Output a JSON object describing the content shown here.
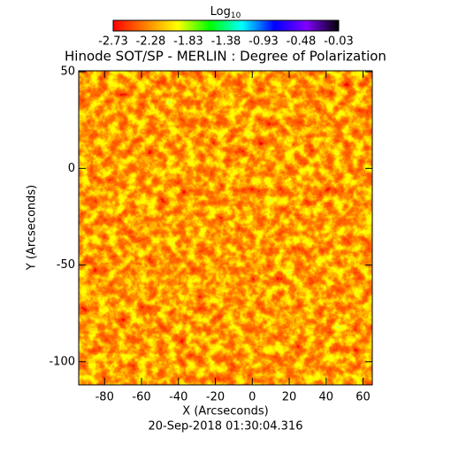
{
  "chart_data": {
    "type": "image",
    "title": "Hinode SOT/SP - MERLIN : Degree of Polarization",
    "xlabel": "X (Arcseconds)",
    "ylabel": "Y (Arcseconds)",
    "footer": "20-Sep-2018 01:30:04.316",
    "xlim": [
      -94,
      65
    ],
    "ylim": [
      -112,
      50.5
    ],
    "xticks": [
      -80,
      -60,
      -40,
      -20,
      0,
      20,
      40,
      60
    ],
    "yticks": [
      -100,
      -50,
      0,
      50
    ],
    "colorbar": {
      "label": "Log",
      "label_sub": "10",
      "lim": [
        -2.73,
        -0.03
      ],
      "ticks": [
        -2.73,
        -2.28,
        -1.83,
        -1.38,
        -0.93,
        -0.48,
        -0.03
      ],
      "colors": [
        "#ff0000",
        "#ff8000",
        "#ffff00",
        "#00ff00",
        "#00ffff",
        "#0000ff",
        "#8000ff",
        "#000000"
      ]
    }
  }
}
